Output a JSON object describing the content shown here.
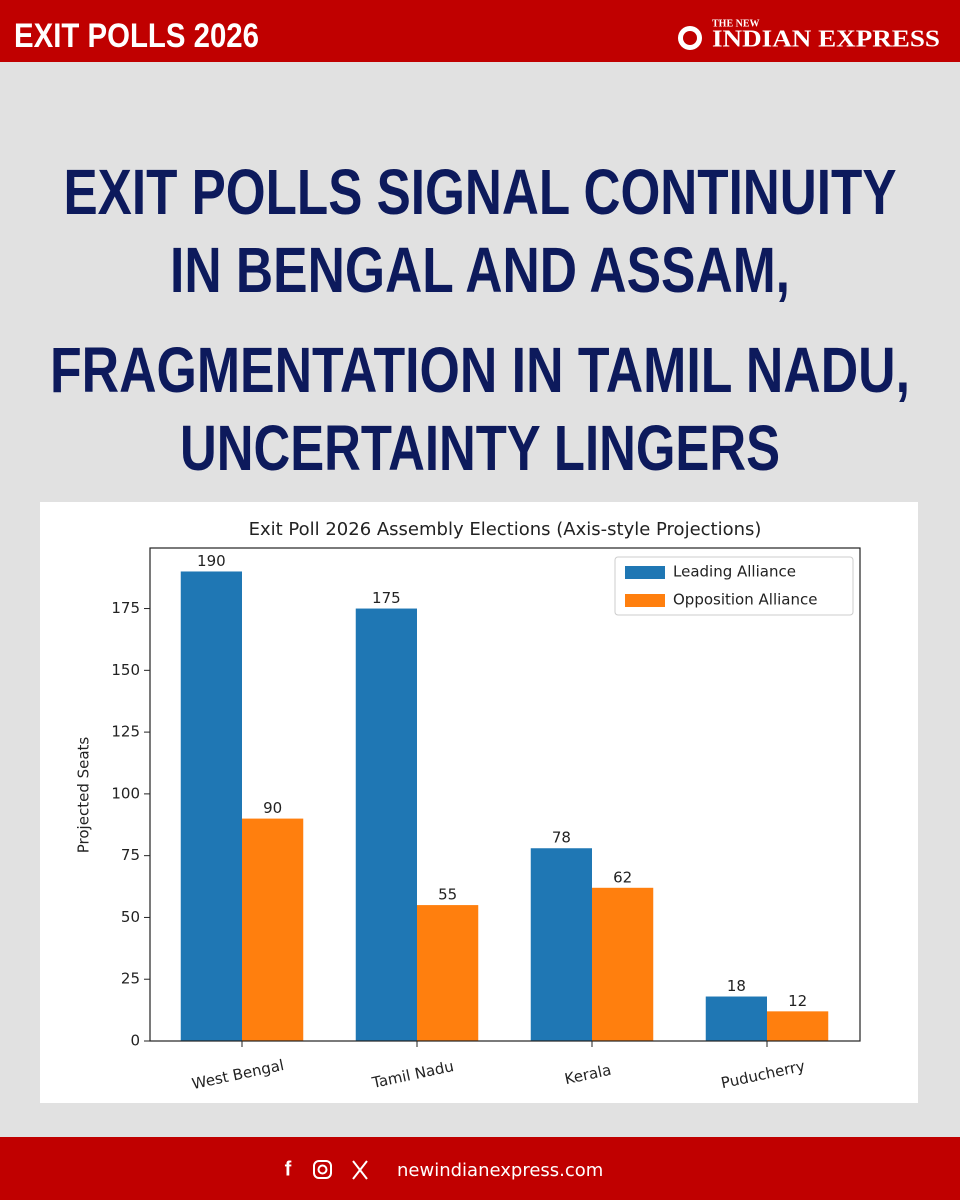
{
  "header": {
    "label": "EXIT POLLS 2026",
    "brand_small": "THE NEW",
    "brand": "INDIAN EXPRESS"
  },
  "headline": [
    "EXIT POLLS SIGNAL CONTINUITY",
    "IN BENGAL AND ASSAM,",
    "FRAGMENTATION IN TAMIL NADU,",
    "UNCERTAINTY LINGERS"
  ],
  "footer": {
    "site": "newindianexpress.com"
  },
  "chart_data": {
    "type": "bar",
    "title": "Exit Poll 2026 Assembly Elections (Axis-style Projections)",
    "y_label": "Projected Seats",
    "categories": [
      "West Bengal",
      "Tamil Nadu",
      "Kerala",
      "Puducherry"
    ],
    "series": [
      {
        "name": "Leading Alliance",
        "color": "#1f77b4",
        "values": [
          190,
          175,
          78,
          18
        ]
      },
      {
        "name": "Opposition Alliance",
        "color": "#ff7f0e",
        "values": [
          90,
          55,
          62,
          12
        ]
      }
    ],
    "ylim": [
      0,
      199.5
    ],
    "yticks": [
      0,
      25,
      50,
      75,
      100,
      125,
      150,
      175
    ],
    "legend": "upper right",
    "grid": false
  }
}
